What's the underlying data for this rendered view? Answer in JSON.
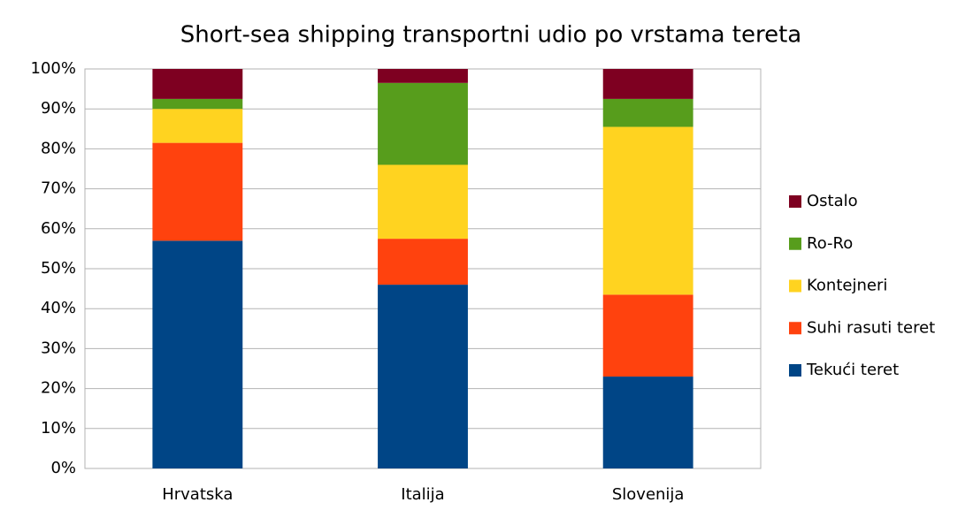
{
  "chart_data": {
    "type": "stacked_bar",
    "title": "Short-sea shipping transportni udio po vrstama tereta",
    "categories": [
      "Hrvatska",
      "Italija",
      "Slovenija"
    ],
    "series": [
      {
        "name": "Tekući teret",
        "color": "#004586",
        "values": [
          57,
          46,
          23
        ]
      },
      {
        "name": "Suhi rasuti teret",
        "color": "#ff420e",
        "values": [
          24.5,
          11.5,
          20.5
        ]
      },
      {
        "name": "Kontejneri",
        "color": "#ffd320",
        "values": [
          8.5,
          18.5,
          42
        ]
      },
      {
        "name": "Ro-Ro",
        "color": "#579d1c",
        "values": [
          2.5,
          20.5,
          7
        ]
      },
      {
        "name": "Ostalo",
        "color": "#7e0021",
        "values": [
          7.5,
          3.5,
          7.5
        ]
      }
    ],
    "ylim": [
      0,
      100
    ],
    "yticks": [
      {
        "value": 0,
        "label": "0%"
      },
      {
        "value": 10,
        "label": "10%"
      },
      {
        "value": 20,
        "label": "20%"
      },
      {
        "value": 30,
        "label": "30%"
      },
      {
        "value": 40,
        "label": "40%"
      },
      {
        "value": 50,
        "label": "50%"
      },
      {
        "value": 60,
        "label": "60%"
      },
      {
        "value": 70,
        "label": "70%"
      },
      {
        "value": 80,
        "label": "80%"
      },
      {
        "value": 90,
        "label": "90%"
      },
      {
        "value": 100,
        "label": "100%"
      }
    ],
    "grid": true,
    "legend": "right"
  }
}
